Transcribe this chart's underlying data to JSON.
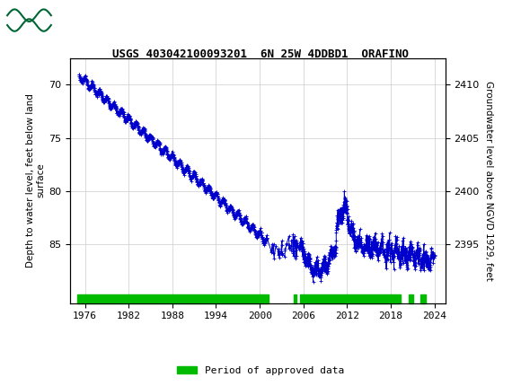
{
  "title": "USGS 403042100093201  6N 25W 4DDBD1  ORAFINO",
  "ylabel_left": "Depth to water level, feet below land\nsurface",
  "ylabel_right": "Groundwater level above NGVD 1929, feet",
  "xlim": [
    1974.0,
    2025.5
  ],
  "ylim_left": [
    90.5,
    67.5
  ],
  "ylim_right": [
    2389.5,
    2412.5
  ],
  "xticks": [
    1976,
    1982,
    1988,
    1994,
    2000,
    2006,
    2012,
    2018,
    2024
  ],
  "yticks_left": [
    70,
    75,
    80,
    85
  ],
  "yticks_right": [
    2395,
    2400,
    2405,
    2410
  ],
  "grid_color": "#cccccc",
  "line_color": "#0000cc",
  "approved_color": "#00bb00",
  "header_bg": "#006633",
  "legend_label": "Period of approved data",
  "background_color": "#ffffff",
  "approved_segments": [
    [
      1975.0,
      2001.2
    ],
    [
      2004.7,
      2005.1
    ],
    [
      2005.5,
      2019.3
    ],
    [
      2020.5,
      2021.1
    ],
    [
      2022.0,
      2022.8
    ]
  ]
}
